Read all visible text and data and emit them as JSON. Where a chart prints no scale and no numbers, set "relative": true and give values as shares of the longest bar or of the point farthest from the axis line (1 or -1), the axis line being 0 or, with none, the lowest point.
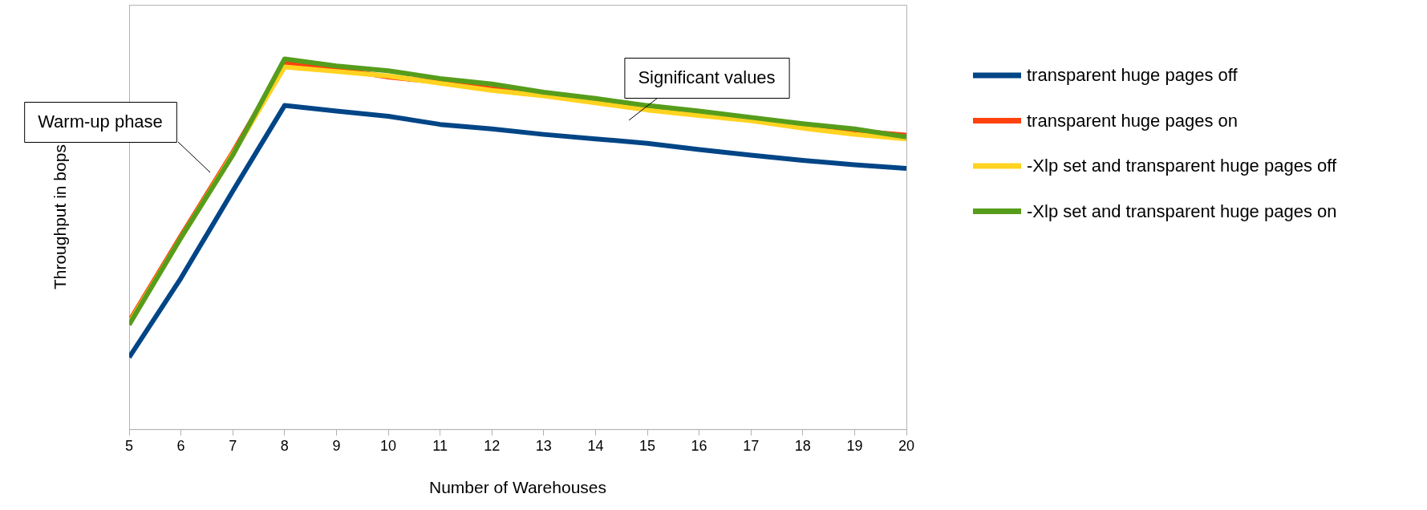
{
  "chart_data": {
    "type": "line",
    "relative": true,
    "xlabel": "Number of Warehouses",
    "ylabel": "Throughput in bops",
    "x": [
      5,
      6,
      7,
      8,
      9,
      10,
      11,
      12,
      13,
      14,
      15,
      16,
      17,
      18,
      19,
      20
    ],
    "xlim": [
      5,
      20
    ],
    "xticks": [
      5,
      6,
      7,
      8,
      9,
      10,
      11,
      12,
      13,
      14,
      15,
      16,
      17,
      18,
      19,
      20
    ],
    "legend": "right",
    "marker": "none",
    "line_style": "solid",
    "annotations": [
      "Warm-up phase",
      "Significant values"
    ],
    "series": [
      {
        "name": "transparent huge pages off",
        "color": "#004586",
        "values": [
          0.194,
          0.408,
          0.643,
          0.874,
          0.859,
          0.845,
          0.823,
          0.811,
          0.796,
          0.784,
          0.772,
          0.755,
          0.74,
          0.726,
          0.714,
          0.704
        ]
      },
      {
        "name": "transparent huge pages on",
        "color": "#ff420e",
        "values": [
          0.291,
          0.522,
          0.748,
          0.988,
          0.973,
          0.951,
          0.937,
          0.92,
          0.905,
          0.888,
          0.869,
          0.854,
          0.837,
          0.82,
          0.806,
          0.794
        ]
      },
      {
        "name": "-Xlp set and transparent huge pages off",
        "color": "#ffd320",
        "values": [
          0.286,
          0.517,
          0.743,
          0.978,
          0.966,
          0.954,
          0.934,
          0.915,
          0.9,
          0.881,
          0.862,
          0.847,
          0.833,
          0.813,
          0.796,
          0.784
        ]
      },
      {
        "name": "-Xlp set and transparent huge pages on",
        "color": "#579d1c",
        "values": [
          0.282,
          0.517,
          0.74,
          1,
          0.981,
          0.968,
          0.947,
          0.932,
          0.91,
          0.893,
          0.874,
          0.859,
          0.842,
          0.825,
          0.811,
          0.789
        ]
      }
    ]
  }
}
